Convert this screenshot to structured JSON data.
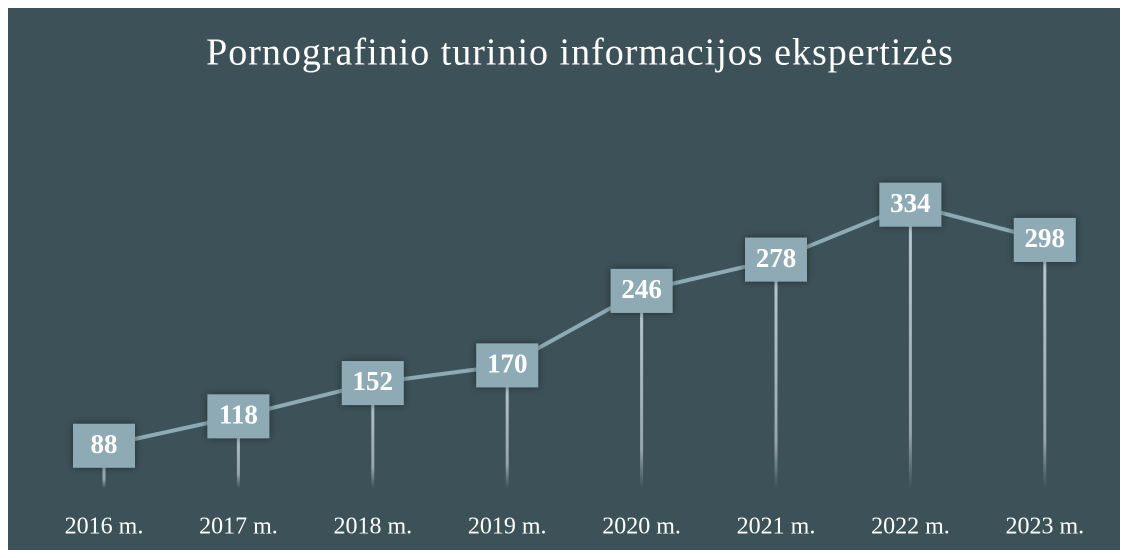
{
  "chart_data": {
    "type": "line",
    "title": "Pornografinio turinio informacijos ekspertizės",
    "categories": [
      "2016 m.",
      "2017 m.",
      "2018 m.",
      "2019 m.",
      "2020 m.",
      "2021 m.",
      "2022 m.",
      "2023 m."
    ],
    "values": [
      88,
      118,
      152,
      170,
      246,
      278,
      334,
      298
    ],
    "color": "#8eaab4"
  }
}
